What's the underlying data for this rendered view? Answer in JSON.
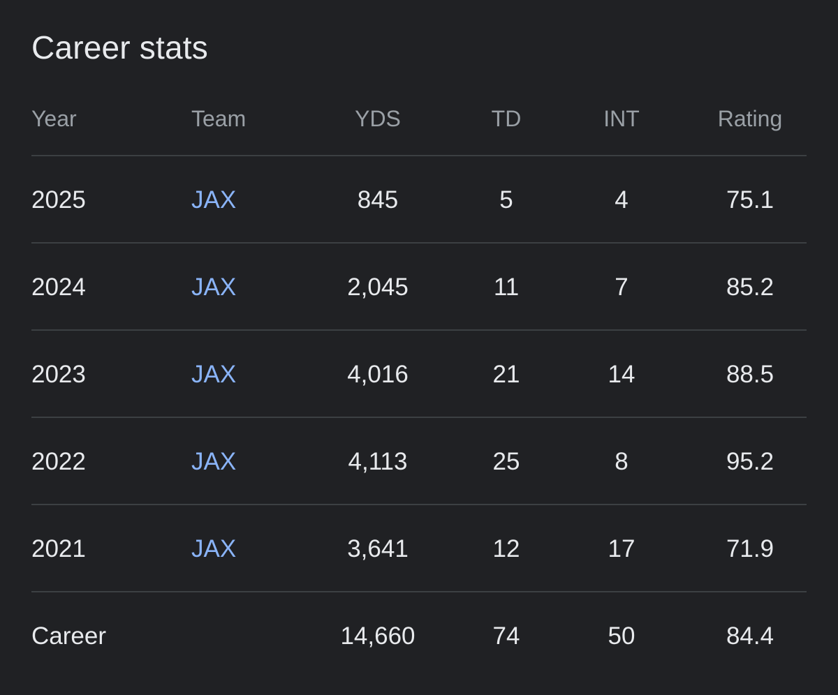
{
  "card": {
    "title": "Career stats"
  },
  "table": {
    "headers": {
      "year": "Year",
      "team": "Team",
      "yds": "YDS",
      "td": "TD",
      "int": "INT",
      "rating": "Rating"
    },
    "rows": [
      {
        "year": "2025",
        "team": "JAX",
        "yds": "845",
        "td": "5",
        "int": "4",
        "rating": "75.1"
      },
      {
        "year": "2024",
        "team": "JAX",
        "yds": "2,045",
        "td": "11",
        "int": "7",
        "rating": "85.2"
      },
      {
        "year": "2023",
        "team": "JAX",
        "yds": "4,016",
        "td": "21",
        "int": "14",
        "rating": "88.5"
      },
      {
        "year": "2022",
        "team": "JAX",
        "yds": "4,113",
        "td": "25",
        "int": "8",
        "rating": "95.2"
      },
      {
        "year": "2021",
        "team": "JAX",
        "yds": "3,641",
        "td": "12",
        "int": "17",
        "rating": "71.9"
      }
    ],
    "career": {
      "label": "Career",
      "yds": "14,660",
      "td": "74",
      "int": "50",
      "rating": "84.4"
    }
  },
  "colors": {
    "background": "#202124",
    "text": "#e8eaed",
    "header_text": "#9aa0a6",
    "link": "#8ab4f8",
    "divider": "#3c4043"
  }
}
